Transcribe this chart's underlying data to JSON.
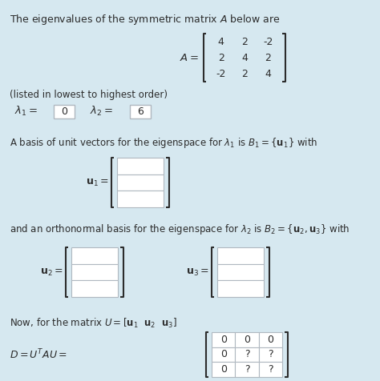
{
  "bg_color": "#d6e8f0",
  "text_color": "#2c2c2c",
  "title_text": "The eigenvalues of the symmetric matrix $\\mathit{A}$ below are",
  "matrix_A": [
    [
      "4",
      "2",
      "-2"
    ],
    [
      "2",
      "4",
      "2"
    ],
    [
      "-2",
      "2",
      "4"
    ]
  ],
  "listed_text": "(listed in lowest to highest order)",
  "lambda1_val": "0",
  "lambda2_val": "6",
  "basis_text": "A basis of unit vectors for the eigenspace for $\\lambda_1$ is $B_1 = \\{\\mathbf{u}_1\\}$ with",
  "ortho_text": "and an orthonormal basis for the eigenspace for $\\lambda_2$ is $B_2 = \\{\\mathbf{u}_2, \\mathbf{u}_3\\}$ with",
  "now_text": "Now, for the matrix $U = [\\mathbf{u}_1 \\ \\ \\mathbf{u}_2 \\ \\ \\mathbf{u}_3]$",
  "D_label": "$D = U^T AU =$",
  "D_matrix": [
    [
      "0",
      "0",
      "0"
    ],
    [
      "0",
      "?",
      "?"
    ],
    [
      "0",
      "?",
      "?"
    ]
  ],
  "box_border": "#b0b8c0"
}
